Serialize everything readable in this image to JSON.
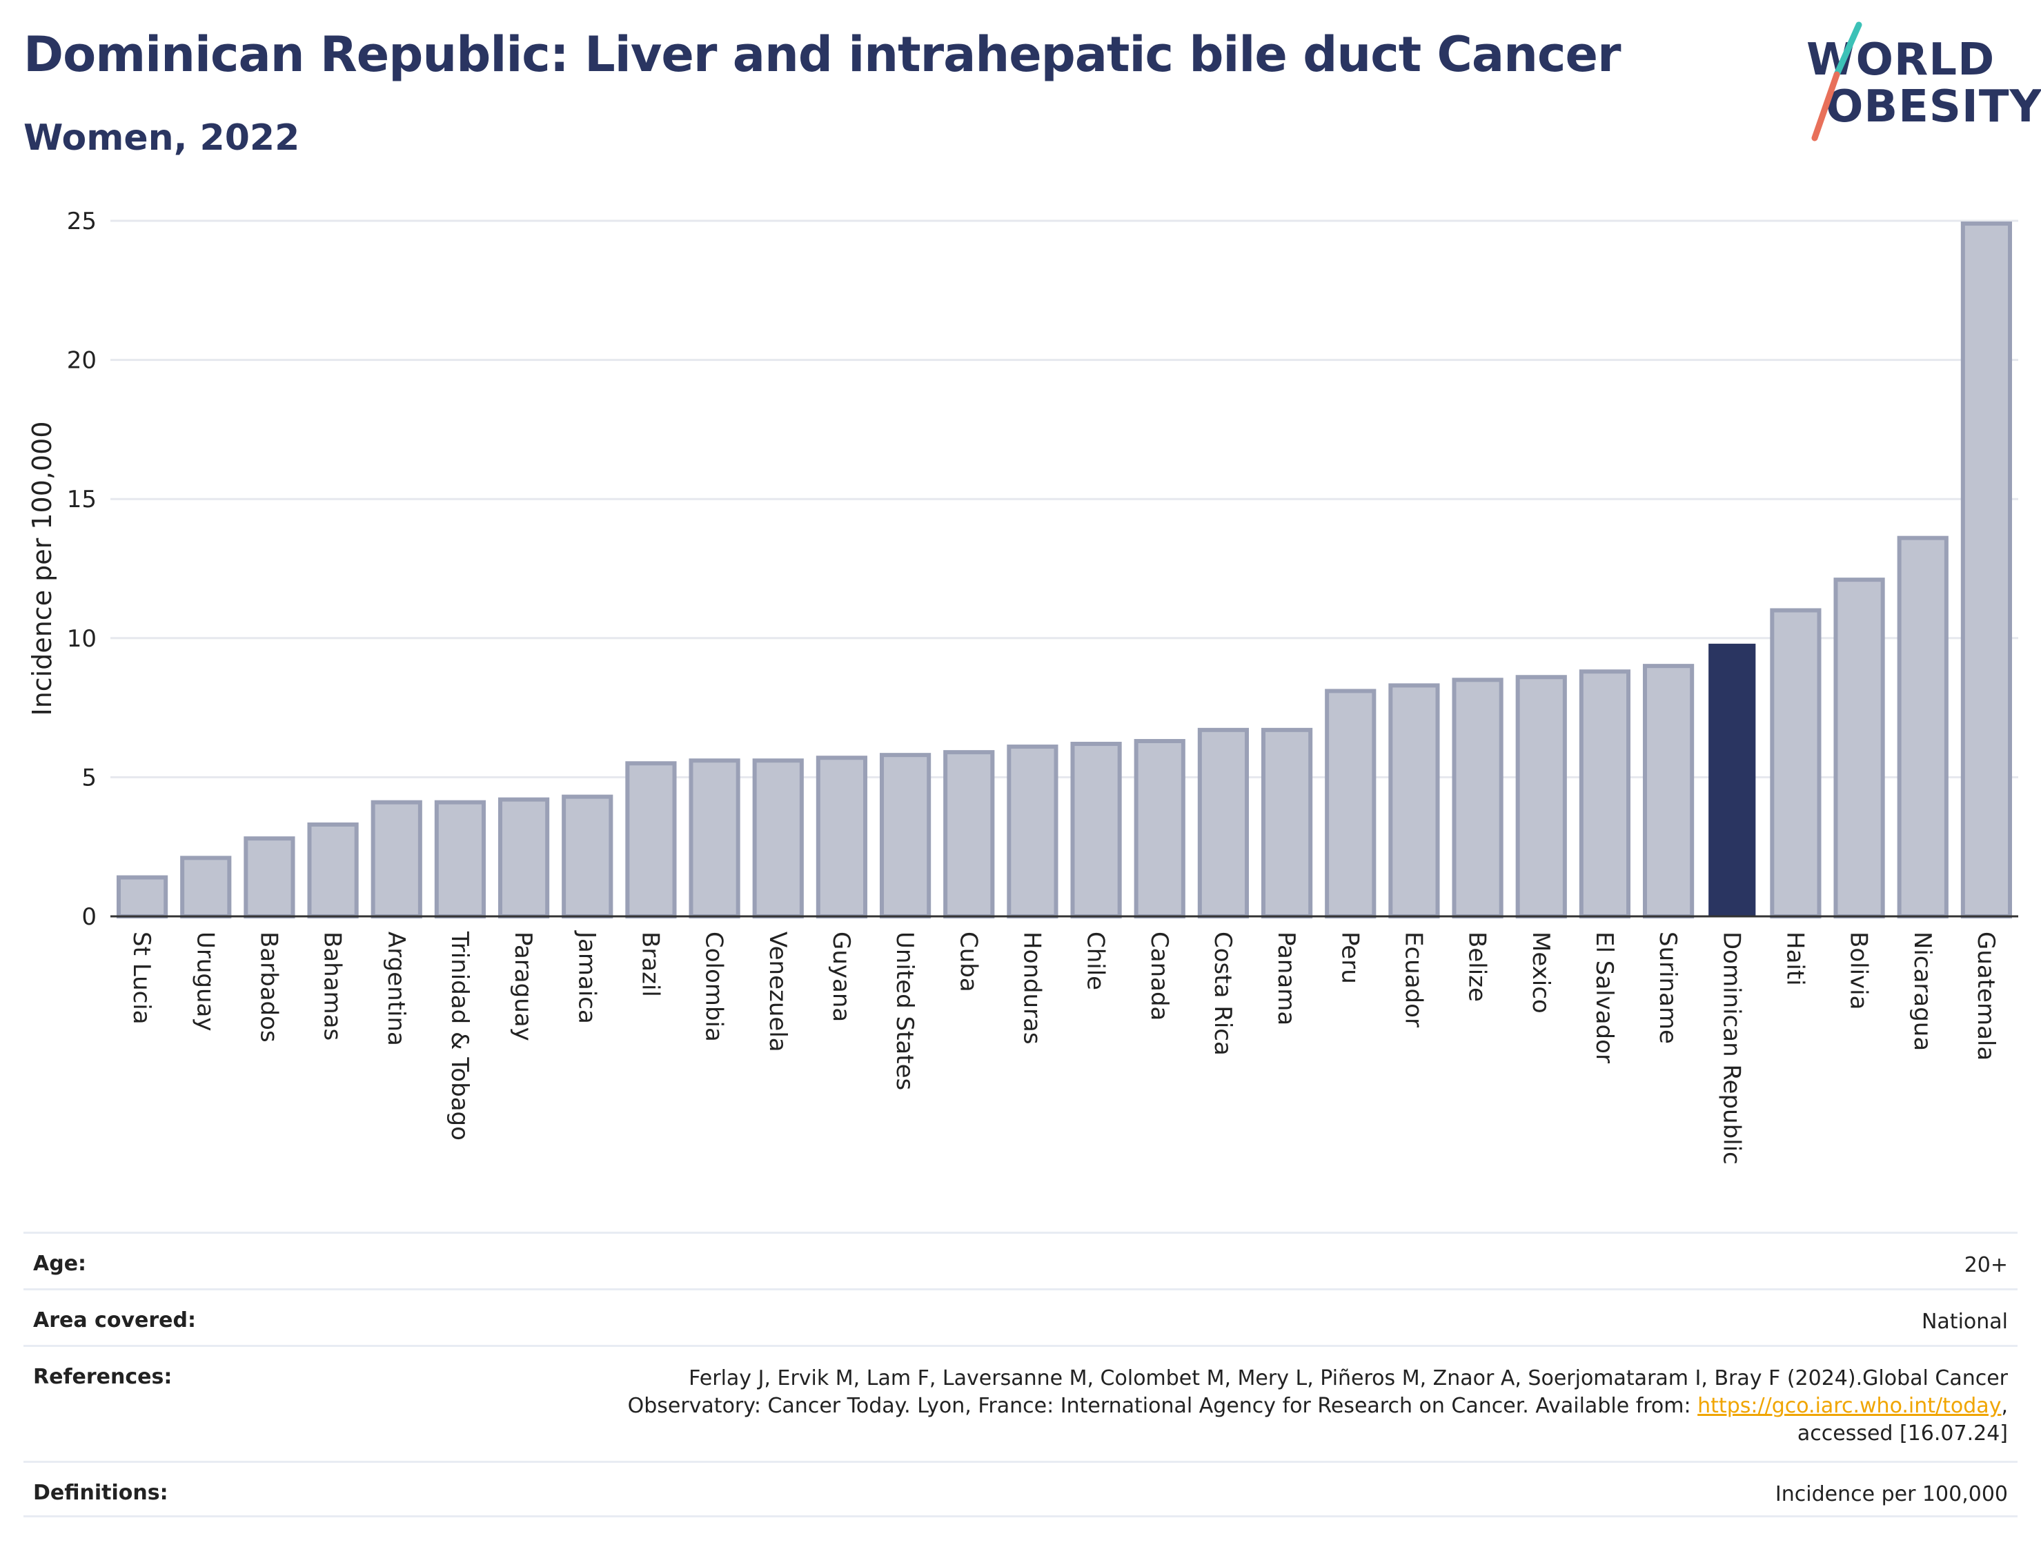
{
  "header": {
    "title": "Dominican Republic: Liver and intrahepatic bile duct Cancer",
    "subtitle": "Women, 2022"
  },
  "logo": {
    "line1": "WORLD",
    "line2": "OBESITY",
    "colors": {
      "text": "#2a3561",
      "slash_top": "#3cc1b7",
      "slash_bottom": "#e8705a"
    }
  },
  "chart_data": {
    "type": "bar",
    "ylabel": "Incidence per 100,000",
    "xlabel": "",
    "ylim": [
      0,
      25
    ],
    "yticks": [
      0,
      5,
      10,
      15,
      20,
      25
    ],
    "grid": true,
    "highlight": "Dominican Republic",
    "colors": {
      "bar": "#bfc3d0",
      "bar_edge": "#9aa0b6",
      "highlight": "#2a3561",
      "grid": "#e6e8ee"
    },
    "categories": [
      "St Lucia",
      "Uruguay",
      "Barbados",
      "Bahamas",
      "Argentina",
      "Trinidad & Tobago",
      "Paraguay",
      "Jamaica",
      "Brazil",
      "Colombia",
      "Venezuela",
      "Guyana",
      "United States",
      "Cuba",
      "Honduras",
      "Chile",
      "Canada",
      "Costa Rica",
      "Panama",
      "Peru",
      "Ecuador",
      "Belize",
      "Mexico",
      "El Salvador",
      "Suriname",
      "Dominican Republic",
      "Haiti",
      "Bolivia",
      "Nicaragua",
      "Guatemala"
    ],
    "values": [
      1.4,
      2.1,
      2.8,
      3.3,
      4.1,
      4.1,
      4.2,
      4.3,
      5.5,
      5.6,
      5.6,
      5.7,
      5.8,
      5.9,
      6.1,
      6.2,
      6.3,
      6.7,
      6.7,
      8.1,
      8.3,
      8.5,
      8.6,
      8.8,
      9.0,
      9.8,
      11.0,
      12.1,
      13.6,
      24.9
    ]
  },
  "info": {
    "age_label": "Age:",
    "age_value": "20+",
    "area_label": "Area covered:",
    "area_value": "National",
    "references_label": "References:",
    "references_line1": "Ferlay J, Ervik M, Lam F, Laversanne M, Colombet M, Mery L, Piñeros M, Znaor A, Soerjomataram I, Bray F (2024).Global Cancer",
    "references_line2_pre": "Observatory: Cancer Today. Lyon, France: International Agency for Research on Cancer. Available from: ",
    "references_link": "https://gco.iarc.who.int/today",
    "references_line2_post": ",",
    "references_line3": "accessed [16.07.24]",
    "definitions_label": "Definitions:",
    "definitions_value": "Incidence per 100,000"
  }
}
